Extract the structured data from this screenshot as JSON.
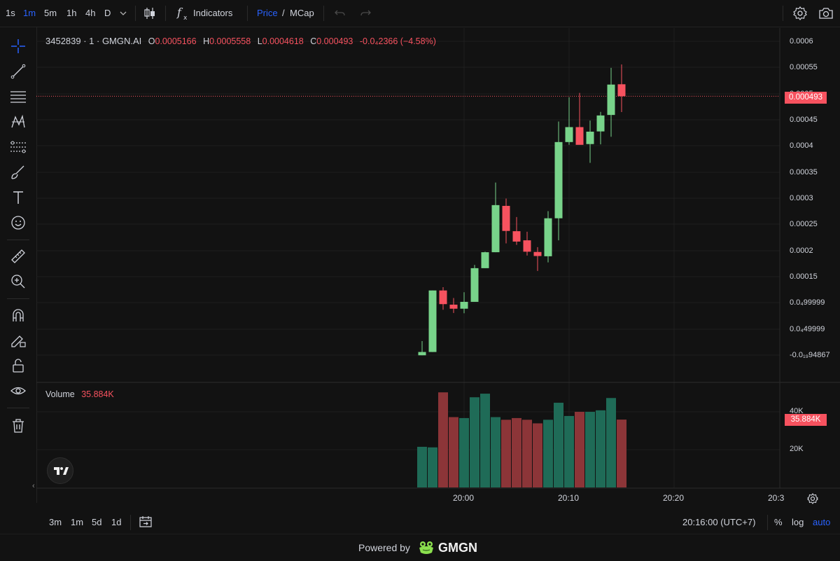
{
  "toolbar": {
    "timeframes": [
      "1s",
      "1m",
      "5m",
      "1h",
      "4h",
      "D"
    ],
    "active_timeframe": "1m",
    "indicators_label": "Indicators",
    "price_label": "Price",
    "slash": "/",
    "mcap_label": "MCap"
  },
  "legend": {
    "symbol": "3452839 · 1 · GMGN.AI",
    "o_label": "O",
    "o_value": "0.0005166",
    "h_label": "H",
    "h_value": "0.0005558",
    "l_label": "L",
    "l_value": "0.0004618",
    "c_label": "C",
    "c_value": "0.000493",
    "change": "-0.0₄2366 (−4.58%)"
  },
  "volume_legend": {
    "label": "Volume",
    "value": "35.884K"
  },
  "price_axis": {
    "labels": [
      "0.0006",
      "0.00055",
      "0.0005",
      "0.00045",
      "0.0004",
      "0.00035",
      "0.0003",
      "0.00025",
      "0.0002",
      "0.00015",
      "0.0₄99999",
      "0.0₄49999",
      "-0.0₁₉94867"
    ],
    "current_tag": "0.000493"
  },
  "volume_axis": {
    "labels": [
      "40K",
      "20K"
    ],
    "current_tag": "35.884K"
  },
  "time_axis": {
    "labels": [
      "20:00",
      "20:10",
      "20:20",
      "20:3"
    ]
  },
  "bottombar": {
    "ranges": [
      "3m",
      "1m",
      "5d",
      "1d"
    ],
    "clock": "20:16:00 (UTC+7)",
    "percent": "%",
    "log": "log",
    "auto": "auto"
  },
  "footer": {
    "powered_by": "Powered by",
    "brand": "GMGN"
  },
  "colors": {
    "bg": "#121212",
    "up": "#78d38a",
    "down": "#f7525f",
    "vol_up": "#1f6b57",
    "vol_down": "#8c3538",
    "accent": "#2962ff"
  },
  "icons": [
    "candles-icon",
    "indicators-fx-icon",
    "undo-icon",
    "redo-icon",
    "settings-gear-icon",
    "camera-icon",
    "crosshair-icon",
    "trend-line-icon",
    "fib-lines-icon",
    "pattern-icon",
    "forecast-icon",
    "brush-icon",
    "text-icon",
    "emoji-icon",
    "ruler-icon",
    "zoom-in-icon",
    "magnet-icon",
    "lock-drawing-icon",
    "lock-icon",
    "eye-icon",
    "trash-icon",
    "tradingview-logo-icon",
    "calendar-goto-icon",
    "axis-settings-icon",
    "gmgn-frog-icon"
  ],
  "chart_data": {
    "type": "candlestick",
    "time_start": "19:56",
    "interval_minutes": 1,
    "candles": [
      {
        "o": -1.85e-05,
        "h": 9.5e-06,
        "l": -1.85e-05,
        "c": -1.2e-05
      },
      {
        "o": -1.2e-05,
        "h": 0.0001095,
        "l": -1.2e-05,
        "c": 0.0001095
      },
      {
        "o": 0.0001095,
        "h": 0.000116,
        "l": 7.15e-05,
        "c": 8.25e-05
      },
      {
        "o": 8.15e-05,
        "h": 9.45e-05,
        "l": 6.5e-05,
        "c": 7.35e-05
      },
      {
        "o": 7.35e-05,
        "h": 0.000106,
        "l": 6.45e-05,
        "c": 8.7e-05
      },
      {
        "o": 8.7e-05,
        "h": 0.00016,
        "l": 8.7e-05,
        "c": 0.0001535
      },
      {
        "o": 0.0001535,
        "h": 0.000186,
        "l": 0.0001535,
        "c": 0.000185
      },
      {
        "o": 0.000185,
        "h": 0.0003225,
        "l": 0.000185,
        "c": 0.000278
      },
      {
        "o": 0.0002765,
        "h": 0.000291,
        "l": 0.0002025,
        "c": 0.000227
      },
      {
        "o": 0.0002265,
        "h": 0.0002545,
        "l": 0.0001995,
        "c": 0.000206
      },
      {
        "o": 0.0002085,
        "h": 0.0002255,
        "l": 0.0001785,
        "c": 0.000186
      },
      {
        "o": 0.0001855,
        "h": 0.000195,
        "l": 0.000148,
        "c": 0.0001775
      },
      {
        "o": 0.000177,
        "h": 0.000266,
        "l": 0.000165,
        "c": 0.000252
      },
      {
        "o": 0.000252,
        "h": 0.000443,
        "l": 0.0002085,
        "c": 0.0004025
      },
      {
        "o": 0.0004025,
        "h": 0.000491,
        "l": 0.000397,
        "c": 0.000432
      },
      {
        "o": 0.000432,
        "h": 0.0004995,
        "l": 0.0003975,
        "c": 0.000397
      },
      {
        "o": 0.0003985,
        "h": 0.000445,
        "l": 0.0003615,
        "c": 0.000423
      },
      {
        "o": 0.0004235,
        "h": 0.000462,
        "l": 0.000398,
        "c": 0.000455
      },
      {
        "o": 0.000456,
        "h": 0.000549,
        "l": 0.000413,
        "c": 0.000516
      },
      {
        "o": 0.0005166,
        "h": 0.0005558,
        "l": 0.0004618,
        "c": 0.000493
      }
    ],
    "volumes": [
      21500,
      21200,
      50300,
      37200,
      36700,
      47700,
      49600,
      37200,
      35800,
      36700,
      35800,
      33900,
      35800,
      44800,
      37800,
      40000,
      40000,
      40800,
      47300,
      35884
    ],
    "price_axis_range": [
      -1.95e-05,
      0.0006
    ],
    "volume_axis_max_label": "40K",
    "last_price": 0.000493
  }
}
